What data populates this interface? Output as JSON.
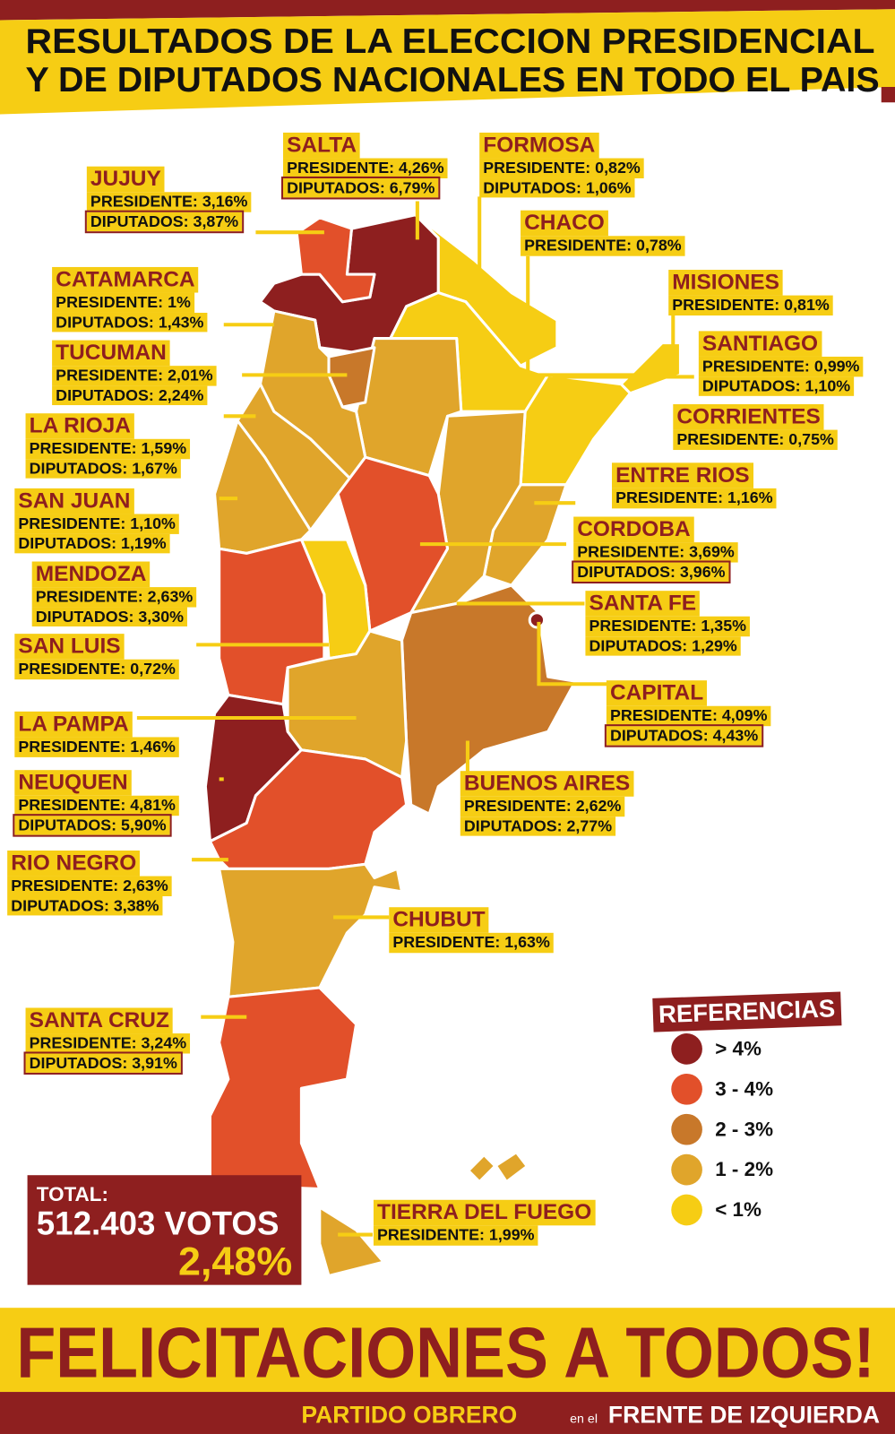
{
  "header": {
    "title_lines": [
      "RESULTADOS DE LA ELECCION PRESIDENCIAL",
      "Y DE DIPUTADOS NACIONALES EN TODO EL PAIS"
    ]
  },
  "provinces": [
    {
      "name": "JUJUY",
      "presidente": "PRESIDENTE: 3,16%",
      "diputados": "DIPUTADOS: 3,87%"
    },
    {
      "name": "SALTA",
      "presidente": "PRESIDENTE: 4,26%",
      "diputados": "DIPUTADOS: 6,79%"
    },
    {
      "name": "FORMOSA",
      "presidente": "PRESIDENTE: 0,82%",
      "diputados": "DIPUTADOS: 1,06%"
    },
    {
      "name": "CHACO",
      "presidente": "PRESIDENTE: 0,78%"
    },
    {
      "name": "CATAMARCA",
      "presidente": "PRESIDENTE: 1%",
      "diputados": "DIPUTADOS: 1,43%"
    },
    {
      "name": "MISIONES",
      "presidente": "PRESIDENTE: 0,81%"
    },
    {
      "name": "TUCUMAN",
      "presidente": "PRESIDENTE: 2,01%",
      "diputados": "DIPUTADOS: 2,24%"
    },
    {
      "name": "SANTIAGO",
      "presidente": "PRESIDENTE: 0,99%",
      "diputados": "DIPUTADOS: 1,10%"
    },
    {
      "name": "CORRIENTES",
      "presidente": "PRESIDENTE: 0,75%"
    },
    {
      "name": "LA RIOJA",
      "presidente": "PRESIDENTE: 1,59%",
      "diputados": "DIPUTADOS: 1,67%"
    },
    {
      "name": "ENTRE RIOS",
      "presidente": "PRESIDENTE: 1,16%"
    },
    {
      "name": "SAN JUAN",
      "presidente": "PRESIDENTE: 1,10%",
      "diputados": "DIPUTADOS: 1,19%"
    },
    {
      "name": "CORDOBA",
      "presidente": "PRESIDENTE: 3,69%",
      "diputados": "DIPUTADOS: 3,96%"
    },
    {
      "name": "MENDOZA",
      "presidente": "PRESIDENTE: 2,63%",
      "diputados": "DIPUTADOS: 3,30%"
    },
    {
      "name": "SANTA FE",
      "presidente": "PRESIDENTE: 1,35%",
      "diputados": "DIPUTADOS: 1,29%"
    },
    {
      "name": "SAN LUIS",
      "presidente": "PRESIDENTE: 0,72%"
    },
    {
      "name": "CAPITAL",
      "presidente": "PRESIDENTE: 4,09%",
      "diputados": "DIPUTADOS: 4,43%"
    },
    {
      "name": "LA PAMPA",
      "presidente": "PRESIDENTE: 1,46%"
    },
    {
      "name": "NEUQUEN",
      "presidente": "PRESIDENTE: 4,81%",
      "diputados": "DIPUTADOS: 5,90%"
    },
    {
      "name": "BUENOS AIRES",
      "presidente": "PRESIDENTE: 2,62%",
      "diputados": "DIPUTADOS: 2,77%"
    },
    {
      "name": "RIO NEGRO",
      "presidente": "PRESIDENTE: 2,63%",
      "diputados": "DIPUTADOS: 3,38%"
    },
    {
      "name": "CHUBUT",
      "presidente": "PRESIDENTE: 1,63%"
    },
    {
      "name": "SANTA CRUZ",
      "presidente": "PRESIDENTE: 3,24%",
      "diputados": "DIPUTADOS: 3,91%"
    },
    {
      "name": "TIERRA DEL FUEGO",
      "presidente": "PRESIDENTE: 1,99%"
    }
  ],
  "legend": {
    "title": "REFERENCIAS",
    "items": [
      {
        "label": "> 4%",
        "color": "#8e1f1f"
      },
      {
        "label": "3 - 4%",
        "color": "#e2502a"
      },
      {
        "label": "2 - 3%",
        "color": "#c8782a"
      },
      {
        "label": "1 - 2%",
        "color": "#e0a52b"
      },
      {
        "label": "< 1%",
        "color": "#f6cd14"
      }
    ]
  },
  "total": {
    "label": "TOTAL:",
    "votes": "512.403 VOTOS",
    "percent": "2,48%"
  },
  "footer": {
    "slogan": "FELICITACIONES A TODOS!",
    "party": "PARTIDO OBRERO",
    "connector": "en el",
    "front": "FRENTE DE IZQUIERDA"
  }
}
